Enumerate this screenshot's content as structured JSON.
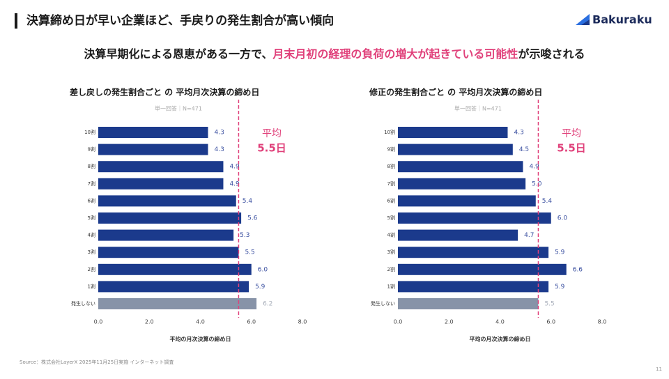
{
  "page": {
    "title": "決算締め日が早い企業ほど、手戻りの発生割合が高い傾向",
    "logo": "Bakuraku",
    "subtitle": [
      {
        "text": "決算早期化による恩恵がある一方で、",
        "color": "#1a1a1a"
      },
      {
        "text": "月末月初の経理の負荷の増大が起きている可能性",
        "color": "#e0407a"
      },
      {
        "text": "が示唆される",
        "color": "#1a1a1a"
      }
    ],
    "source": "Source：株式会社LayerX 2025年11月25日実施 インターネット調査",
    "page_number": "11"
  },
  "chart_data": [
    {
      "type": "bar",
      "orientation": "horizontal",
      "title": "差し戻しの発生割合ごと の 平均月次決算の締め日",
      "subtitle": "単一回答｜N=471",
      "x_label": "平均の月次決算の締め日",
      "categories": [
        "10割",
        "9割",
        "8割",
        "7割",
        "6割",
        "5割",
        "4割",
        "3割",
        "2割",
        "1割",
        "発生しない"
      ],
      "values": [
        4.3,
        4.3,
        4.9,
        4.9,
        5.4,
        5.6,
        5.3,
        5.5,
        6.0,
        5.9,
        6.2
      ],
      "value_labels": [
        "4.3",
        "4.3",
        "4.9",
        "4.9",
        "5.4",
        "5.6",
        "5.3",
        "5.5",
        "6.0",
        "5.9",
        "6.2"
      ],
      "colors": [
        "#1b3a8c",
        "#1b3a8c",
        "#1b3a8c",
        "#1b3a8c",
        "#1b3a8c",
        "#1b3a8c",
        "#1b3a8c",
        "#1b3a8c",
        "#1b3a8c",
        "#1b3a8c",
        "#8793a8"
      ],
      "xlim": [
        0,
        8
      ],
      "xticks": [
        {
          "value": 0,
          "label": "0.0"
        },
        {
          "value": 2,
          "label": "2.0"
        },
        {
          "value": 4,
          "label": "4.0"
        },
        {
          "value": 6,
          "label": "6.0"
        },
        {
          "value": 8,
          "label": "8.0"
        }
      ],
      "average_line": {
        "value": 5.5,
        "title": "平均",
        "label": "5.5日",
        "color": "#e0407a"
      }
    },
    {
      "type": "bar",
      "orientation": "horizontal",
      "title": "修正の発生割合ごと の 平均月次決算の締め日",
      "subtitle": "単一回答｜N=471",
      "x_label": "平均の月次決算の締め日",
      "categories": [
        "10割",
        "9割",
        "8割",
        "7割",
        "6割",
        "5割",
        "4割",
        "3割",
        "2割",
        "1割",
        "発生しない"
      ],
      "values": [
        4.3,
        4.5,
        4.9,
        5.0,
        5.4,
        6.0,
        4.7,
        5.9,
        6.6,
        5.9,
        5.5
      ],
      "value_labels": [
        "4.3",
        "4.5",
        "4.9",
        "5.0",
        "5.4",
        "6.0",
        "4.7",
        "5.9",
        "6.6",
        "5.9",
        "5.5"
      ],
      "colors": [
        "#1b3a8c",
        "#1b3a8c",
        "#1b3a8c",
        "#1b3a8c",
        "#1b3a8c",
        "#1b3a8c",
        "#1b3a8c",
        "#1b3a8c",
        "#1b3a8c",
        "#1b3a8c",
        "#8793a8"
      ],
      "xlim": [
        0,
        8
      ],
      "xticks": [
        {
          "value": 0,
          "label": "0.0"
        },
        {
          "value": 2,
          "label": "2.0"
        },
        {
          "value": 4,
          "label": "4.0"
        },
        {
          "value": 6,
          "label": "6.0"
        },
        {
          "value": 8,
          "label": "8.0"
        }
      ],
      "average_line": {
        "value": 5.5,
        "title": "平均",
        "label": "5.5日",
        "color": "#e0407a"
      }
    }
  ]
}
